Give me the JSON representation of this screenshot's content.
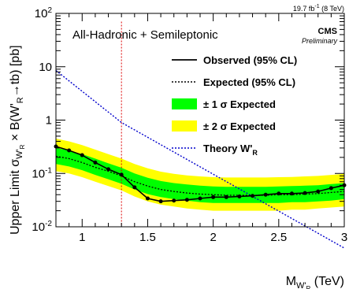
{
  "chart_data": {
    "type": "line",
    "title": "",
    "xlabel": "M_W'R (TeV)",
    "xlabel_parts": {
      "base": "M",
      "sub1": "W'",
      "sub2": "R",
      "unit": "(TeV)"
    },
    "ylabel": "Upper Limit σ_W'R × B(W'R→tb) [pb]",
    "ylabel_parts": {
      "pre": "Upper Limit σ",
      "sub1": "W'",
      "sub2": "R",
      "mid": " × B(W'",
      "sub3": "R",
      "post": "→tb) [pb]"
    },
    "xlim": [
      0.8,
      3.0
    ],
    "ylim": [
      0.01,
      100
    ],
    "yscale": "log",
    "x_ticks": [
      {
        "v": 1,
        "label": "1"
      },
      {
        "v": 1.5,
        "label": "1.5"
      },
      {
        "v": 2,
        "label": "2"
      },
      {
        "v": 2.5,
        "label": "2.5"
      },
      {
        "v": 3,
        "label": "3"
      }
    ],
    "y_ticks": [
      {
        "v": 0.01,
        "b": "10",
        "e": "-2"
      },
      {
        "v": 0.1,
        "b": "10",
        "e": "-1"
      },
      {
        "v": 1,
        "b": "1",
        "e": ""
      },
      {
        "v": 10,
        "b": "10",
        "e": ""
      },
      {
        "v": 100,
        "b": "10",
        "e": "2"
      }
    ],
    "annotations": {
      "lumi": "19.7 fb",
      "lumi_exp": "-1",
      "lumi_energy": "(8 TeV)",
      "channel": "All-Hadronic + Semileptonic",
      "experiment": "CMS",
      "status": "Preliminary"
    },
    "legend": {
      "position": "top-right",
      "entries": [
        {
          "label": "Observed (95% CL)"
        },
        {
          "label": "Expected (95% CL)"
        },
        {
          "label": "± 1 σ Expected"
        },
        {
          "label": "± 2 σ Expected"
        },
        {
          "label": "Theory W'",
          "sub": "R"
        }
      ]
    },
    "colors": {
      "observed": "#000000",
      "expected": "#000000",
      "band1": "#00ff00",
      "band2": "#ffff00",
      "theory": "#0000cc",
      "vline": "#dd0000"
    },
    "x": [
      0.8,
      0.9,
      1.0,
      1.1,
      1.2,
      1.3,
      1.4,
      1.5,
      1.6,
      1.7,
      1.8,
      1.9,
      2.0,
      2.1,
      2.2,
      2.3,
      2.4,
      2.5,
      2.6,
      2.7,
      2.8,
      2.9,
      3.0
    ],
    "series": [
      {
        "name": "Observed (95% CL)",
        "values": [
          0.32,
          0.27,
          0.22,
          0.16,
          0.12,
          0.095,
          0.055,
          0.034,
          0.03,
          0.031,
          0.032,
          0.034,
          0.036,
          0.036,
          0.037,
          0.038,
          0.04,
          0.042,
          0.042,
          0.043,
          0.046,
          0.053,
          0.06
        ]
      },
      {
        "name": "Expected (95% CL)",
        "values": [
          0.21,
          0.19,
          0.16,
          0.13,
          0.11,
          0.09,
          0.07,
          0.058,
          0.05,
          0.046,
          0.043,
          0.041,
          0.04,
          0.039,
          0.039,
          0.039,
          0.039,
          0.04,
          0.04,
          0.041,
          0.042,
          0.044,
          0.046
        ]
      },
      {
        "name": "± 1 σ Expected",
        "lower": [
          0.15,
          0.135,
          0.115,
          0.094,
          0.078,
          0.064,
          0.05,
          0.041,
          0.036,
          0.033,
          0.031,
          0.029,
          0.028,
          0.028,
          0.028,
          0.028,
          0.028,
          0.028,
          0.029,
          0.029,
          0.03,
          0.031,
          0.033
        ],
        "upper": [
          0.3,
          0.27,
          0.23,
          0.19,
          0.155,
          0.128,
          0.1,
          0.083,
          0.072,
          0.066,
          0.062,
          0.059,
          0.057,
          0.056,
          0.056,
          0.056,
          0.056,
          0.057,
          0.058,
          0.059,
          0.06,
          0.063,
          0.066
        ]
      },
      {
        "name": "± 2 σ Expected",
        "lower": [
          0.11,
          0.1,
          0.085,
          0.07,
          0.058,
          0.048,
          0.037,
          0.03,
          0.026,
          0.024,
          0.022,
          0.021,
          0.02,
          0.02,
          0.02,
          0.02,
          0.02,
          0.02,
          0.021,
          0.021,
          0.022,
          0.023,
          0.024
        ],
        "upper": [
          0.45,
          0.4,
          0.34,
          0.28,
          0.23,
          0.19,
          0.15,
          0.125,
          0.108,
          0.098,
          0.092,
          0.088,
          0.085,
          0.084,
          0.084,
          0.084,
          0.084,
          0.085,
          0.086,
          0.088,
          0.09,
          0.094,
          0.098
        ]
      },
      {
        "name": "Theory W'R",
        "x": [
          0.8,
          1.3,
          3.0
        ],
        "values": [
          8.5,
          0.9,
          0.004
        ]
      }
    ],
    "vline_x": 1.3
  }
}
